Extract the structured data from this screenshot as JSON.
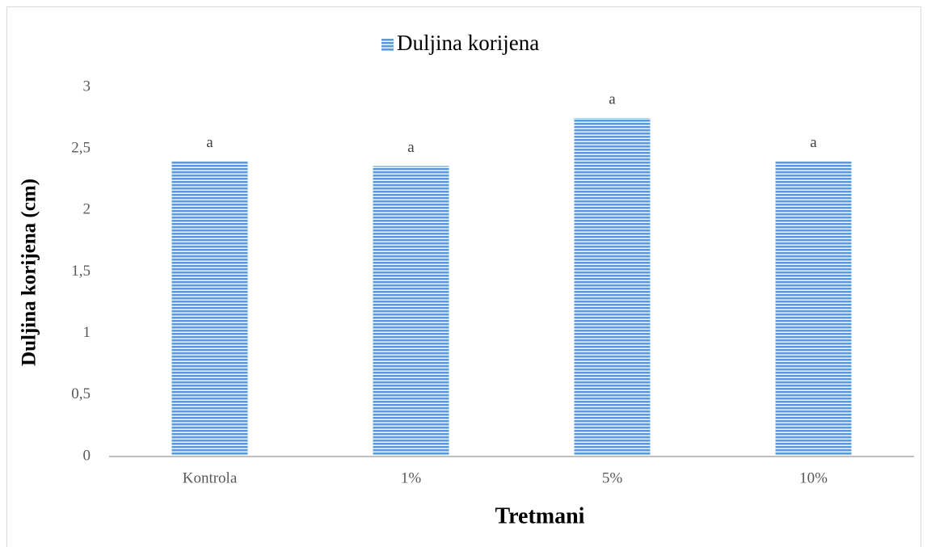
{
  "chart_data": {
    "type": "bar",
    "legend": "top",
    "series": [
      {
        "name": "Duljina korijena",
        "color": "#5b9bd5",
        "values": [
          2.4,
          2.36,
          2.75,
          2.4
        ]
      }
    ],
    "categories": [
      "Kontrola",
      "1%",
      "5%",
      "10%"
    ],
    "annotations": [
      "a",
      "a",
      "a",
      "a"
    ],
    "x_label": "Tretmani",
    "y_label": "Duljina korijena (cm)",
    "ylim": [
      0,
      3
    ],
    "yticks": [
      0,
      {
        "value": 0.5,
        "label": "0,5"
      },
      1,
      {
        "value": 1.5,
        "label": "1,5"
      },
      2,
      {
        "value": 2.5,
        "label": "2,5"
      },
      3
    ],
    "grid": false
  }
}
